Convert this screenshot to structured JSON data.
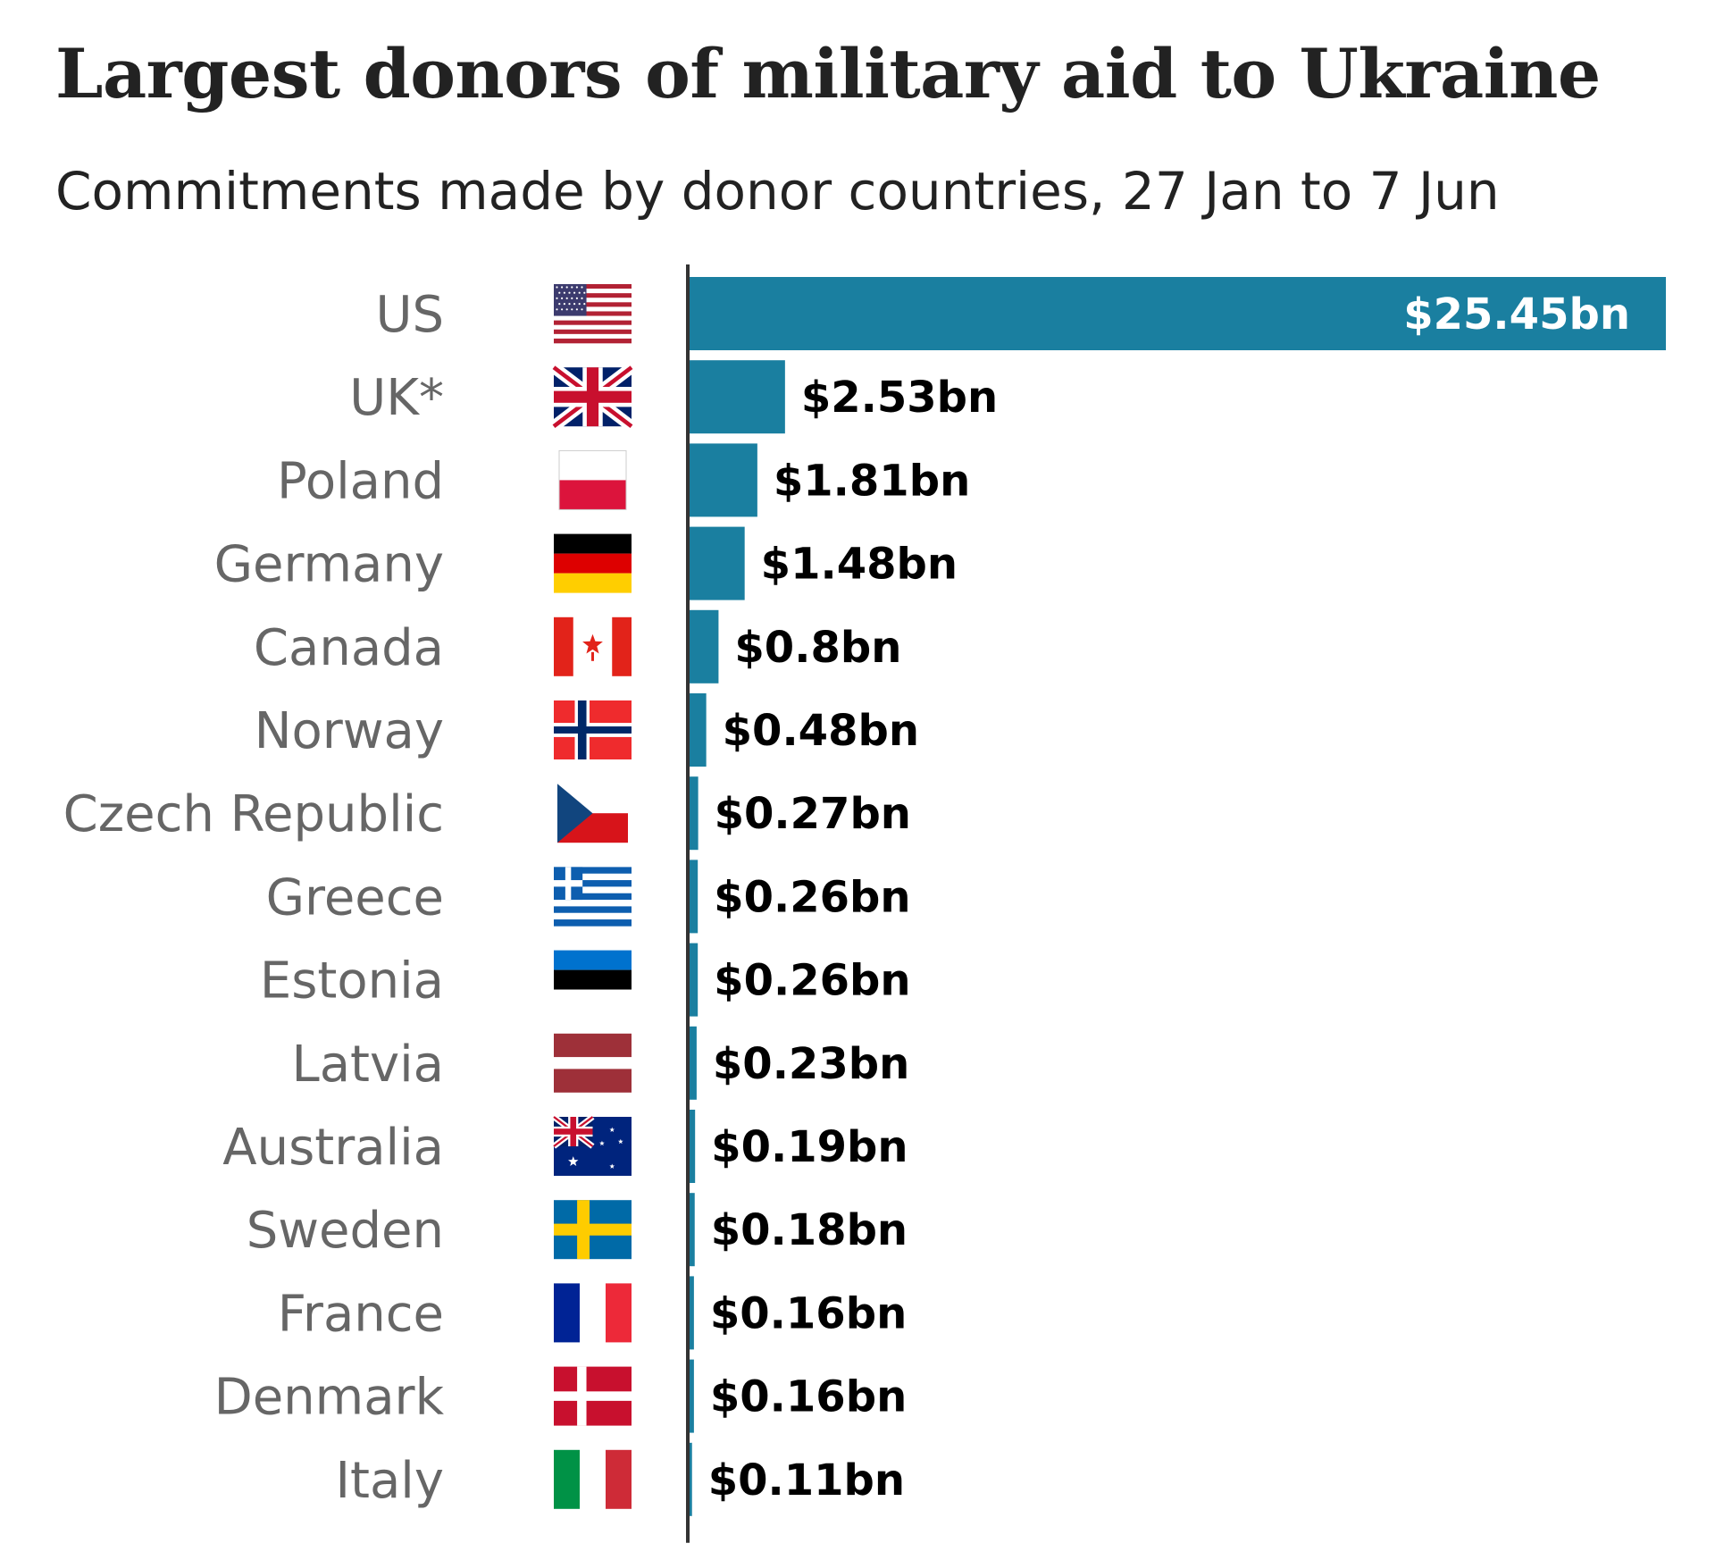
{
  "title": "Largest donors of military aid to Ukraine",
  "subtitle": "Commitments made by donor countries, 27 Jan to 7 Jun",
  "colors": {
    "bar": "#1a7fa0",
    "axis": "#333333",
    "category_text": "#666666",
    "value_text": "#000000",
    "value_text_inside": "#ffffff"
  },
  "chart_data": {
    "type": "bar",
    "orientation": "horizontal",
    "categories": [
      "US",
      "UK*",
      "Poland",
      "Germany",
      "Canada",
      "Norway",
      "Czech Republic",
      "Greece",
      "Estonia",
      "Latvia",
      "Australia",
      "Sweden",
      "France",
      "Denmark",
      "Italy"
    ],
    "values": [
      25.45,
      2.53,
      1.81,
      1.48,
      0.8,
      0.48,
      0.27,
      0.26,
      0.26,
      0.23,
      0.19,
      0.18,
      0.16,
      0.16,
      0.11
    ],
    "value_labels": [
      "$25.45bn",
      "$2.53bn",
      "$1.81bn",
      "$1.48bn",
      "$0.8bn",
      "$0.48bn",
      "$0.27bn",
      "$0.26bn",
      "$0.26bn",
      "$0.23bn",
      "$0.19bn",
      "$0.18bn",
      "$0.16bn",
      "$0.16bn",
      "$0.11bn"
    ],
    "flags": [
      "us-flag-icon",
      "uk-flag-icon",
      "poland-flag-icon",
      "germany-flag-icon",
      "canada-flag-icon",
      "norway-flag-icon",
      "czech-flag-icon",
      "greece-flag-icon",
      "estonia-flag-icon",
      "latvia-flag-icon",
      "australia-flag-icon",
      "sweden-flag-icon",
      "france-flag-icon",
      "denmark-flag-icon",
      "italy-flag-icon"
    ],
    "xlim": [
      0,
      25.45
    ],
    "grid": false,
    "legend": "none"
  }
}
